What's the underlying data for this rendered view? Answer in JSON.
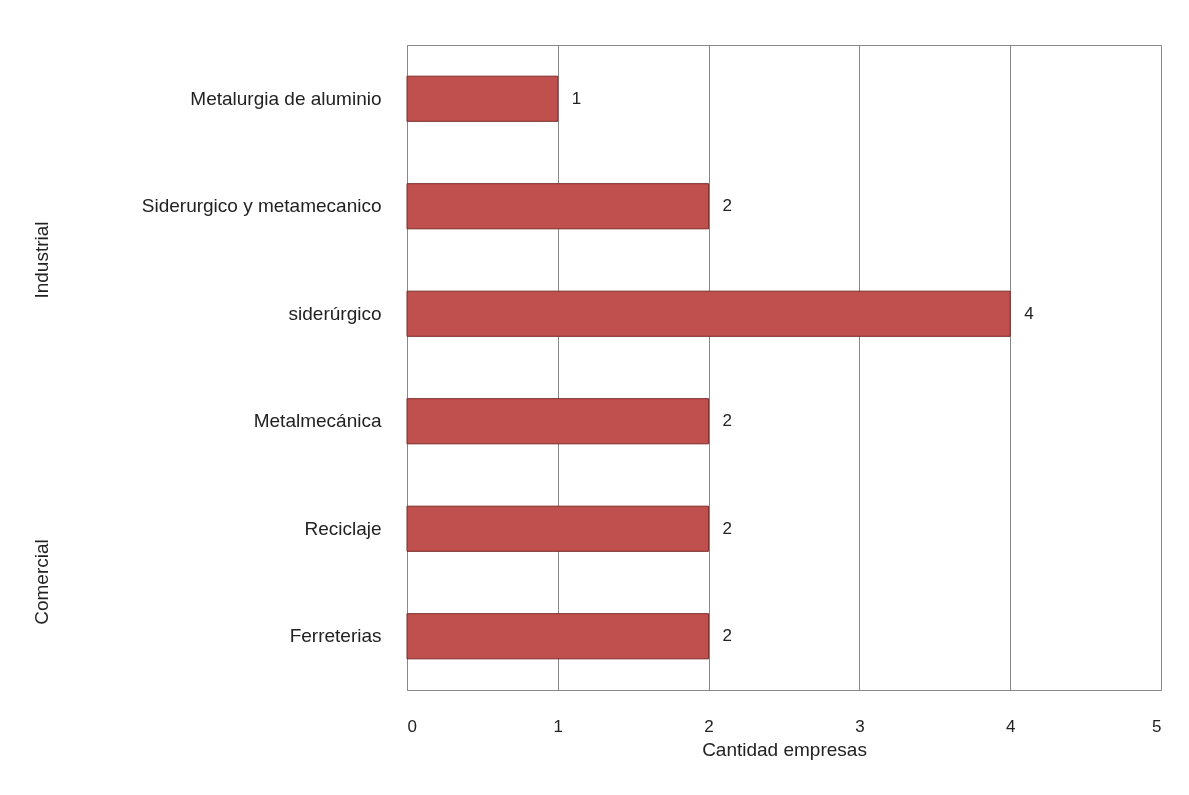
{
  "chart_data": {
    "type": "bar",
    "orientation": "horizontal",
    "categories": [
      "Metalurgia de aluminio",
      "Siderurgico y metamecanico",
      "siderúrgico",
      "Metalmecánica",
      "Reciclaje",
      "Ferreterias"
    ],
    "values": [
      1,
      2,
      4,
      2,
      2,
      2
    ],
    "color": "#c0504d",
    "xlim": [
      0,
      5
    ],
    "xticks": [
      0,
      1,
      2,
      3,
      4,
      5
    ],
    "xlabel": "Cantidad empresas",
    "grid": "x",
    "data_labels": true,
    "annotations": [
      "Industrial",
      "Comercial"
    ]
  }
}
